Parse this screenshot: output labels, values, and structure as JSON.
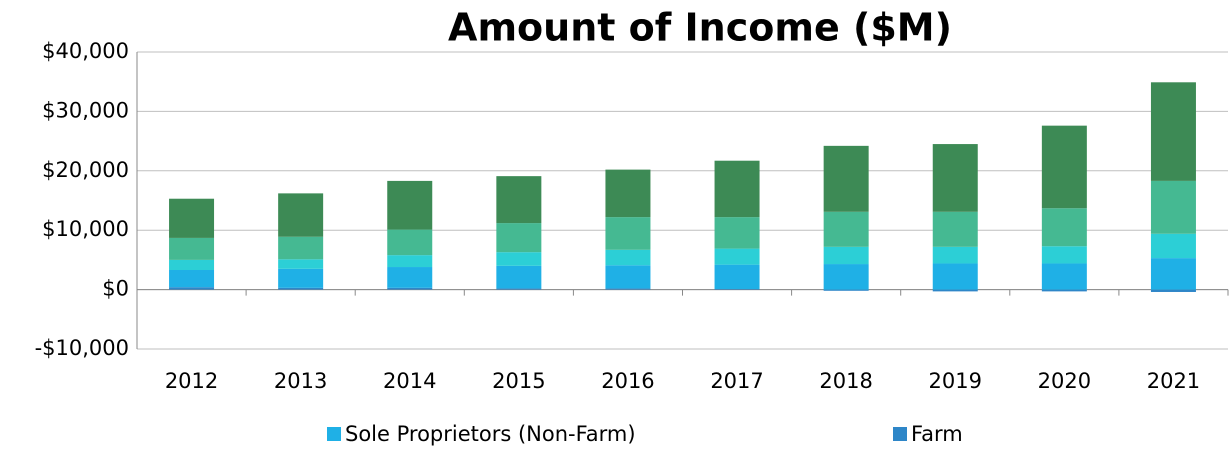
{
  "chart_data": {
    "type": "stacked_bar",
    "title": "Amount of Income ($M)",
    "categories": [
      "2012",
      "2013",
      "2014",
      "2015",
      "2016",
      "2017",
      "2018",
      "2019",
      "2020",
      "2021"
    ],
    "series": [
      {
        "name": "Farm",
        "color": "#2e86c8",
        "values": [
          400,
          300,
          300,
          200,
          200,
          100,
          -200,
          -300,
          -300,
          -400
        ]
      },
      {
        "name": "Sole Proprietors (Non-Farm)",
        "color": "#1fb0e6",
        "values": [
          2900,
          3200,
          3500,
          3800,
          3900,
          4100,
          4300,
          4400,
          4400,
          5300
        ]
      },
      {
        "color": "#2ccfd6",
        "values": [
          1700,
          1600,
          2000,
          2300,
          2600,
          2700,
          2900,
          2800,
          2900,
          4100
        ]
      },
      {
        "color": "#45b992",
        "values": [
          3700,
          3800,
          4300,
          4900,
          5500,
          5300,
          5900,
          5900,
          6400,
          8900
        ]
      },
      {
        "color": "#3d8a55",
        "values": [
          6600,
          7300,
          8200,
          7900,
          8000,
          9500,
          11100,
          11400,
          13900,
          16600
        ]
      }
    ],
    "legend_order": [
      1,
      0
    ],
    "ylim": [
      -10000,
      40000
    ],
    "yticks": [
      {
        "value": -10000,
        "label": "-$10,000"
      },
      {
        "value": 0,
        "label": "$0"
      },
      {
        "value": 10000,
        "label": "$10,000"
      },
      {
        "value": 20000,
        "label": "$20,000"
      },
      {
        "value": 30000,
        "label": "$30,000"
      },
      {
        "value": 40000,
        "label": "$40,000"
      }
    ],
    "grid": true
  }
}
